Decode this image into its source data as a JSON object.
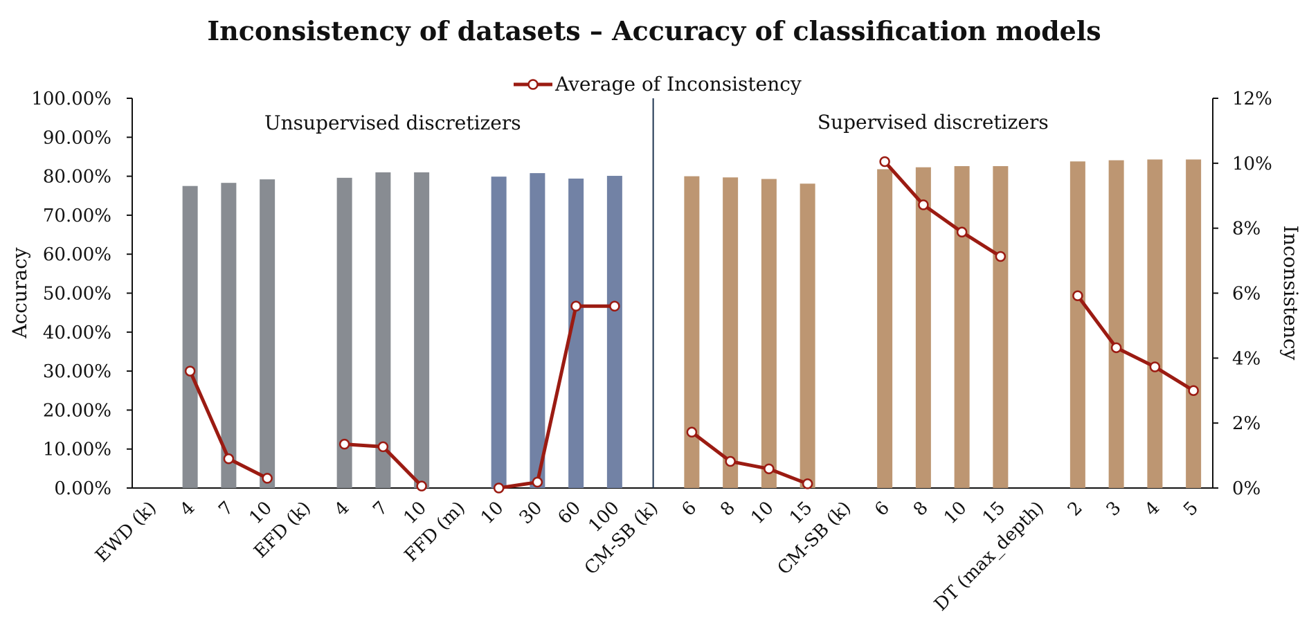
{
  "chart_data": {
    "type": "bar+line",
    "title": "Inconsistency of datasets – Accuracy of classification models",
    "ylabel": "Accuracy",
    "y2label": "Inconsistency",
    "ylim": [
      0,
      100
    ],
    "y2lim": [
      0,
      12
    ],
    "yticks": [
      "0.00%",
      "10.00%",
      "20.00%",
      "30.00%",
      "40.00%",
      "50.00%",
      "60.00%",
      "70.00%",
      "80.00%",
      "90.00%",
      "100.00%"
    ],
    "y2ticks": [
      "0%",
      "2%",
      "4%",
      "6%",
      "8%",
      "10%",
      "12%"
    ],
    "legend": {
      "label": "Average of Inconsistency",
      "placement": "top-center"
    },
    "sections": [
      {
        "label": "Unsupervised discretizers"
      },
      {
        "label": "Supervised discretizers"
      }
    ],
    "categories": [
      "EWD (k)",
      "4",
      "7",
      "10",
      "EFD (k)",
      "4",
      "7",
      "10",
      "FFD (m)",
      "10",
      "30",
      "60",
      "100",
      "CM-SB (k)",
      "6",
      "8",
      "10",
      "15",
      "CM-SB (k)",
      "6",
      "8",
      "10",
      "15",
      "DT (max_depth)",
      "2",
      "3",
      "4",
      "5"
    ],
    "accuracy": [
      null,
      77.5,
      78.3,
      79.2,
      null,
      79.6,
      81.0,
      81.0,
      null,
      79.9,
      80.8,
      79.4,
      80.1,
      null,
      80.0,
      79.7,
      79.3,
      78.1,
      null,
      81.8,
      82.3,
      82.6,
      82.6,
      null,
      83.8,
      84.1,
      84.3,
      84.3
    ],
    "inconsistency": [
      null,
      3.6,
      0.9,
      0.3,
      null,
      1.35,
      1.27,
      0.06,
      null,
      0.0,
      0.18,
      5.6,
      5.6,
      null,
      1.72,
      0.82,
      0.59,
      0.13,
      null,
      10.05,
      8.72,
      7.88,
      7.13,
      null,
      5.92,
      4.32,
      3.73,
      3.0
    ],
    "bar_colors": [
      "",
      "#888c92",
      "#888c92",
      "#888c92",
      "",
      "#888c92",
      "#888c92",
      "#888c92",
      "",
      "#7282a5",
      "#7282a5",
      "#7282a5",
      "#7282a5",
      "",
      "#bd9672",
      "#bd9672",
      "#bd9672",
      "#bd9672",
      "",
      "#bd9672",
      "#bd9672",
      "#bd9672",
      "#bd9672",
      "",
      "#bd9672",
      "#bd9672",
      "#bd9672",
      "#bd9672"
    ],
    "line_color": "#9b1b12",
    "grid": false
  }
}
